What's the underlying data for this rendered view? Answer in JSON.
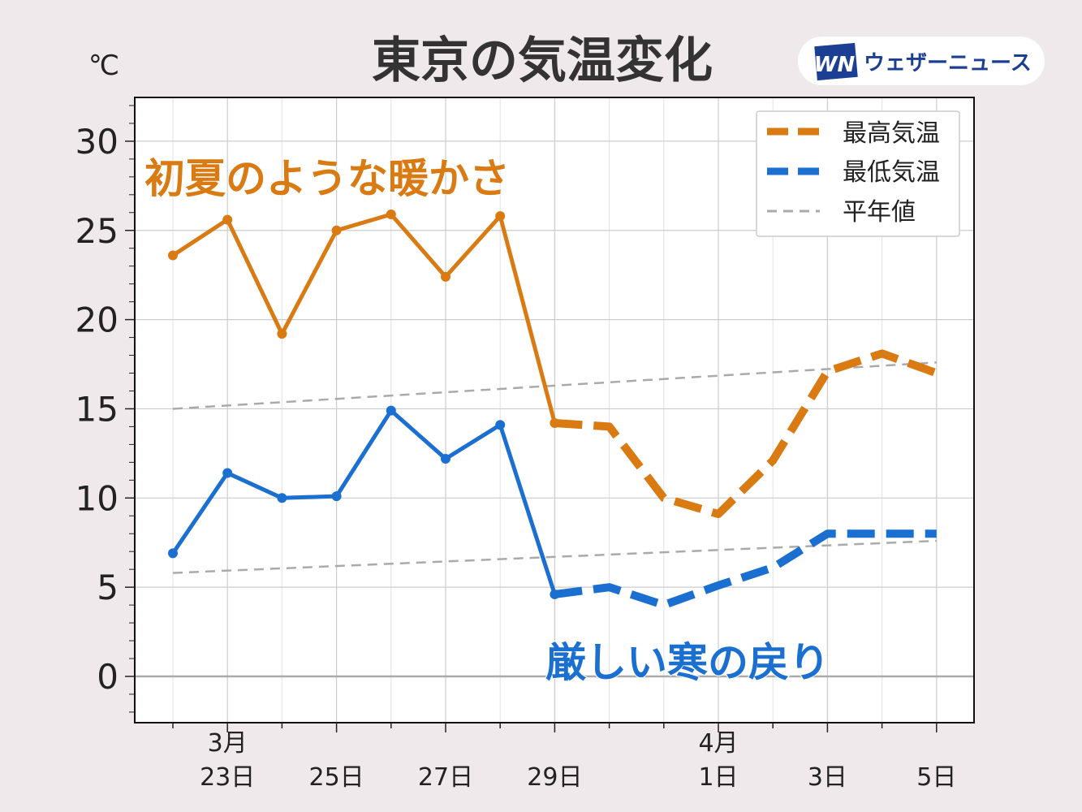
{
  "title": "東京の気温変化",
  "brand": {
    "logo_text": "WN",
    "name": "ウェザーニュース",
    "logo_color": "#1c3f94"
  },
  "unit_label": "℃",
  "annotations": [
    {
      "text": "初夏のような暖かさ",
      "color": "#d97a12"
    },
    {
      "text": "厳しい寒の戻り",
      "color": "#1a6fd1"
    }
  ],
  "chart_data": {
    "type": "line",
    "title": "東京の気温変化",
    "ylabel": "℃",
    "ylim": [
      -2.6,
      32.5
    ],
    "xlim": [
      "3/21",
      "4/6"
    ],
    "grid": true,
    "legend_position": "top-right",
    "x": [
      "3/22",
      "3/23",
      "3/24",
      "3/25",
      "3/26",
      "3/27",
      "3/28",
      "3/29",
      "3/30",
      "3/31",
      "4/1",
      "4/2",
      "4/3",
      "4/4",
      "4/5"
    ],
    "x_ticks": [
      {
        "x": "3/23",
        "label1": "3月",
        "label2": "23日"
      },
      {
        "x": "3/25",
        "label1": "",
        "label2": "25日"
      },
      {
        "x": "3/27",
        "label1": "",
        "label2": "27日"
      },
      {
        "x": "3/29",
        "label1": "",
        "label2": "29日"
      },
      {
        "x": "4/1",
        "label1": "4月",
        "label2": "1日"
      },
      {
        "x": "4/3",
        "label1": "",
        "label2": "3日"
      },
      {
        "x": "4/5",
        "label1": "",
        "label2": "5日"
      }
    ],
    "y_ticks": [
      "0",
      "5",
      "10",
      "15",
      "20",
      "25",
      "30"
    ],
    "observed_until": "3/29",
    "series": [
      {
        "name": "最高気温",
        "color": "#d97a12",
        "values": [
          23.6,
          25.6,
          19.2,
          25.0,
          25.9,
          22.4,
          25.8,
          14.2,
          14.0,
          10.0,
          9.1,
          12.1,
          17.1,
          18.1,
          17.0
        ]
      },
      {
        "name": "最低気温",
        "color": "#1a6fd1",
        "values": [
          6.9,
          11.4,
          10.0,
          10.1,
          14.9,
          12.2,
          14.1,
          4.6,
          5.0,
          4.0,
          5.1,
          6.1,
          8.0,
          8.0,
          8.0
        ]
      },
      {
        "name": "平年値",
        "color": "#aaaaaa",
        "values_high": [
          15.0,
          17.6
        ],
        "values_low": [
          5.8,
          7.6
        ]
      }
    ]
  }
}
